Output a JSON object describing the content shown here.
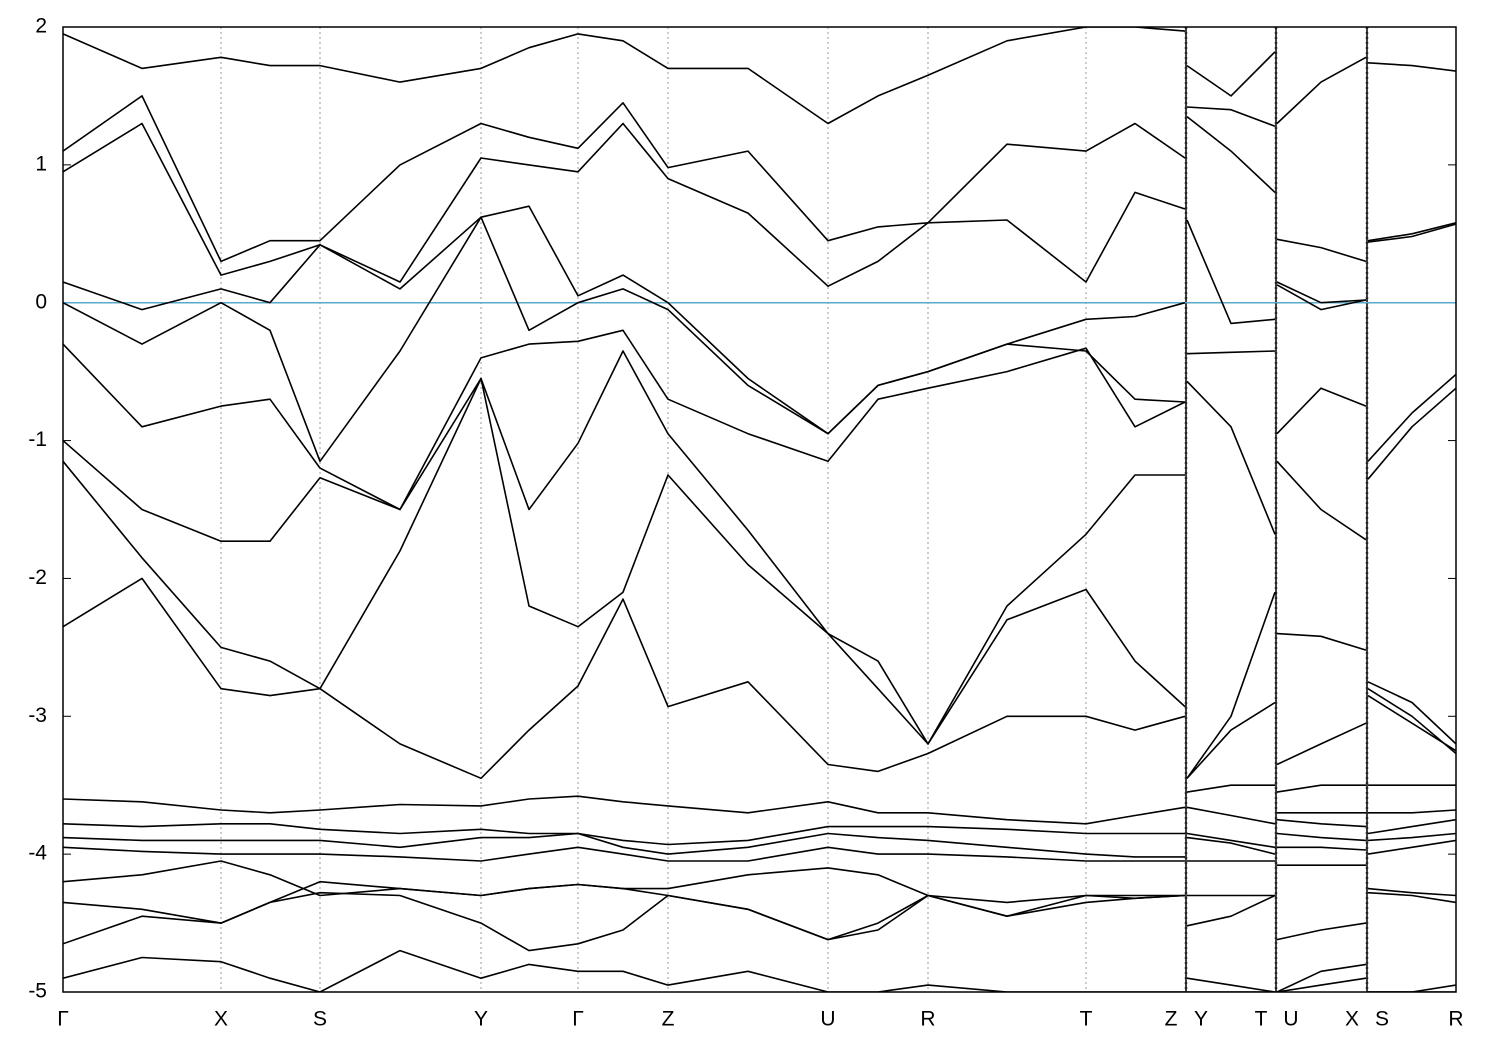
{
  "chart_data": {
    "type": "line",
    "x": [
      0,
      79,
      158,
      207,
      257,
      337,
      418,
      466,
      515,
      560,
      605,
      685,
      765,
      815,
      865,
      944,
      1023,
      1072,
      1122,
      1123,
      1124,
      1168,
      1212,
      1213,
      1214,
      1258,
      1303,
      1304,
      1305,
      1349,
      1393
    ],
    "xlim": [
      0,
      1393
    ],
    "xticks": [
      {
        "value": 0,
        "label": "Γ"
      },
      {
        "value": 158,
        "label": "X"
      },
      {
        "value": 257,
        "label": "S"
      },
      {
        "value": 418,
        "label": "Y"
      },
      {
        "value": 515,
        "label": "Γ"
      },
      {
        "value": 605,
        "label": "Z"
      },
      {
        "value": 765,
        "label": "U"
      },
      {
        "value": 865,
        "label": "R"
      },
      {
        "value": 1023,
        "label": "T"
      },
      {
        "value": 1122,
        "label": "Z"
      },
      {
        "value": 1124,
        "label": "Y"
      },
      {
        "value": 1212,
        "label": "T"
      },
      {
        "value": 1214,
        "label": "U"
      },
      {
        "value": 1303,
        "label": "X"
      },
      {
        "value": 1305,
        "label": "S"
      },
      {
        "value": 1393,
        "label": "R"
      }
    ],
    "ylim": [
      -5,
      2
    ],
    "yticks": [
      2,
      1,
      0,
      -1,
      -2,
      -3,
      -4,
      -5
    ],
    "grid": true,
    "fermi_level": 0,
    "fermi_color": "#5aaac8",
    "series": [
      {
        "color": "#000000",
        "values": [
          1.95,
          1.7,
          1.78,
          1.72,
          1.72,
          1.6,
          1.7,
          1.85,
          1.95,
          1.9,
          1.7,
          1.7,
          1.3,
          1.5,
          1.65,
          1.9,
          2.0,
          2.0,
          1.97,
          null,
          1.72,
          1.5,
          1.82,
          null,
          1.3,
          1.6,
          1.78,
          null,
          1.74,
          1.72,
          1.68
        ]
      },
      {
        "color": "#000000",
        "values": [
          1.1,
          1.5,
          0.3,
          0.45,
          0.45,
          1.0,
          1.3,
          1.2,
          1.12,
          1.45,
          0.98,
          1.1,
          0.45,
          0.55,
          0.58,
          1.15,
          1.1,
          1.3,
          1.05,
          null,
          1.42,
          1.4,
          1.28,
          null,
          0.46,
          0.4,
          0.3,
          null,
          0.45,
          0.5,
          0.58
        ]
      },
      {
        "color": "#000000",
        "values": [
          0.95,
          1.3,
          0.2,
          0.3,
          0.42,
          0.15,
          1.05,
          1.0,
          0.95,
          1.3,
          0.9,
          0.65,
          0.12,
          0.3,
          0.58,
          0.6,
          0.15,
          0.8,
          0.68,
          null,
          1.35,
          1.1,
          0.8,
          null,
          0.15,
          0.0,
          0.02,
          null,
          0.44,
          0.48,
          0.57
        ]
      },
      {
        "color": "#000000",
        "values": [
          0.15,
          -0.05,
          0.1,
          0.0,
          0.42,
          0.1,
          0.62,
          0.7,
          0.05,
          0.2,
          0.0,
          -0.55,
          -0.95,
          -0.6,
          -0.5,
          -0.3,
          -0.12,
          -0.1,
          0.0,
          null,
          0.6,
          -0.15,
          -0.12,
          null,
          0.13,
          -0.05,
          0.02,
          null,
          -1.15,
          -0.8,
          -0.52
        ]
      },
      {
        "color": "#000000",
        "values": [
          0.0,
          -0.3,
          0.0,
          -0.2,
          -1.15,
          -0.35,
          0.62,
          -0.2,
          0.0,
          0.1,
          -0.05,
          -0.6,
          -0.95,
          -0.6,
          -0.5,
          -0.3,
          -0.35,
          -0.7,
          -0.72,
          null,
          -0.37,
          -0.36,
          -0.35,
          null,
          -0.95,
          -0.62,
          -0.75,
          null,
          -1.28,
          -0.9,
          -0.62
        ]
      },
      {
        "color": "#000000",
        "values": [
          -0.3,
          -0.9,
          -0.75,
          -0.7,
          -1.2,
          -1.5,
          -0.4,
          -0.3,
          -0.28,
          -0.2,
          -0.7,
          -0.95,
          -1.15,
          -0.7,
          -0.62,
          -0.5,
          -0.33,
          -0.9,
          -0.72,
          null,
          -0.57,
          -0.9,
          -1.68,
          null,
          -1.15,
          -1.5,
          -1.72,
          null,
          -2.75,
          -2.9,
          -3.2
        ]
      },
      {
        "color": "#000000",
        "values": [
          -1.0,
          -1.5,
          -1.73,
          -1.73,
          -1.27,
          -1.5,
          -0.55,
          -1.5,
          -1.02,
          -0.35,
          -0.95,
          -1.65,
          -2.4,
          -2.6,
          -3.2,
          -2.2,
          -1.68,
          -1.25,
          -1.25,
          null,
          -3.45,
          -3.0,
          -2.1,
          null,
          -2.4,
          -2.42,
          -2.52,
          null,
          -2.85,
          -3.05,
          -3.25
        ]
      },
      {
        "color": "#000000",
        "values": [
          -1.15,
          -1.85,
          -2.5,
          -2.6,
          -2.8,
          -1.8,
          -0.55,
          -2.2,
          -2.35,
          -2.1,
          -1.25,
          -1.9,
          -2.4,
          -2.8,
          -3.2,
          -2.3,
          -2.08,
          -2.6,
          -2.93,
          null,
          -3.45,
          -3.1,
          -2.9,
          null,
          -3.35,
          -3.2,
          -3.05,
          null,
          -2.8,
          -3.0,
          -3.27
        ]
      },
      {
        "color": "#000000",
        "values": [
          -2.35,
          -2.0,
          -2.8,
          -2.85,
          -2.8,
          -3.2,
          -3.45,
          -3.1,
          -2.78,
          -2.15,
          -2.93,
          -2.75,
          -3.35,
          -3.4,
          -3.27,
          -3.0,
          -3.0,
          -3.1,
          -3.0,
          null,
          -3.55,
          -3.5,
          -3.5,
          null,
          -3.55,
          -3.5,
          -3.5,
          null,
          -3.5,
          -3.5,
          -3.5
        ]
      },
      {
        "color": "#000000",
        "values": [
          -3.6,
          -3.62,
          -3.68,
          -3.7,
          -3.68,
          -3.64,
          -3.65,
          -3.6,
          -3.58,
          -3.62,
          -3.65,
          -3.7,
          -3.62,
          -3.7,
          -3.7,
          -3.75,
          -3.78,
          -3.72,
          -3.66,
          null,
          -3.66,
          -3.72,
          -3.78,
          null,
          -3.7,
          -3.7,
          -3.7,
          null,
          -3.7,
          -3.7,
          -3.68
        ]
      },
      {
        "color": "#000000",
        "values": [
          -3.78,
          -3.8,
          -3.78,
          -3.78,
          -3.82,
          -3.85,
          -3.82,
          -3.85,
          -3.85,
          -3.9,
          -3.93,
          -3.9,
          -3.8,
          -3.8,
          -3.8,
          -3.82,
          -3.85,
          -3.85,
          -3.85,
          null,
          -3.85,
          -3.9,
          -3.95,
          null,
          -3.75,
          -3.78,
          -3.8,
          null,
          -3.85,
          -3.8,
          -3.75
        ]
      },
      {
        "color": "#000000",
        "values": [
          -3.88,
          -3.9,
          -3.9,
          -3.9,
          -3.9,
          -3.95,
          -3.88,
          -3.88,
          -3.85,
          -3.95,
          -4.0,
          -3.95,
          -3.85,
          -3.88,
          -3.9,
          -3.95,
          -4.0,
          -4.02,
          -4.02,
          null,
          -3.88,
          -3.92,
          -4.0,
          null,
          -3.85,
          -3.88,
          -3.9,
          null,
          -3.9,
          -3.88,
          -3.85
        ]
      },
      {
        "color": "#000000",
        "values": [
          -3.95,
          -3.98,
          -4.0,
          -4.0,
          -4.0,
          -4.02,
          -4.05,
          -4.0,
          -3.95,
          -4.0,
          -4.05,
          -4.05,
          -3.95,
          -4.0,
          -4.0,
          -4.02,
          -4.05,
          -4.05,
          -4.05,
          null,
          -4.05,
          -4.05,
          -4.05,
          null,
          -3.95,
          -3.95,
          -3.97,
          null,
          -4.0,
          -3.95,
          -3.9
        ]
      },
      {
        "color": "#000000",
        "values": [
          -4.2,
          -4.15,
          -4.05,
          -4.15,
          -4.3,
          -4.25,
          -4.3,
          -4.25,
          -4.22,
          -4.25,
          -4.25,
          -4.15,
          -4.1,
          -4.15,
          -4.3,
          -4.35,
          -4.3,
          -4.3,
          -4.3,
          null,
          -4.3,
          -4.3,
          -4.3,
          null,
          -4.08,
          -4.08,
          -4.08,
          null,
          -4.25,
          -4.28,
          -4.3
        ]
      },
      {
        "color": "#000000",
        "values": [
          -4.35,
          -4.4,
          -4.5,
          -4.35,
          -4.2,
          -4.25,
          -4.3,
          -4.25,
          -4.22,
          -4.25,
          -4.3,
          -4.4,
          -4.62,
          -4.5,
          -4.3,
          -4.45,
          -4.3,
          -4.32,
          -4.3,
          null,
          -4.52,
          -4.45,
          -4.3,
          null,
          -4.62,
          -4.55,
          -4.5,
          null,
          -4.28,
          -4.3,
          -4.35
        ]
      },
      {
        "color": "#000000",
        "values": [
          -4.65,
          -4.45,
          -4.5,
          -4.35,
          -4.28,
          -4.3,
          -4.5,
          -4.7,
          -4.65,
          -4.55,
          -4.3,
          -4.4,
          -4.62,
          -4.55,
          -4.3,
          -4.45,
          -4.35,
          -4.32,
          -4.3,
          null,
          -4.9,
          -4.95,
          -5.0,
          null,
          -5.0,
          -4.85,
          -4.8,
          null,
          -5.0,
          -5.0,
          -4.95
        ]
      },
      {
        "color": "#000000",
        "values": [
          -4.9,
          -4.75,
          -4.78,
          -4.9,
          -5.0,
          -4.7,
          -4.9,
          -4.8,
          -4.85,
          -4.85,
          -4.95,
          -4.85,
          -5.0,
          -5.0,
          -4.95,
          -5.0,
          -5.0,
          -5.0,
          -5.0,
          null,
          -5.0,
          -5.0,
          -5.0,
          null,
          -5.0,
          -4.95,
          -4.9,
          null,
          -5.0,
          -5.0,
          -5.0
        ]
      }
    ]
  }
}
